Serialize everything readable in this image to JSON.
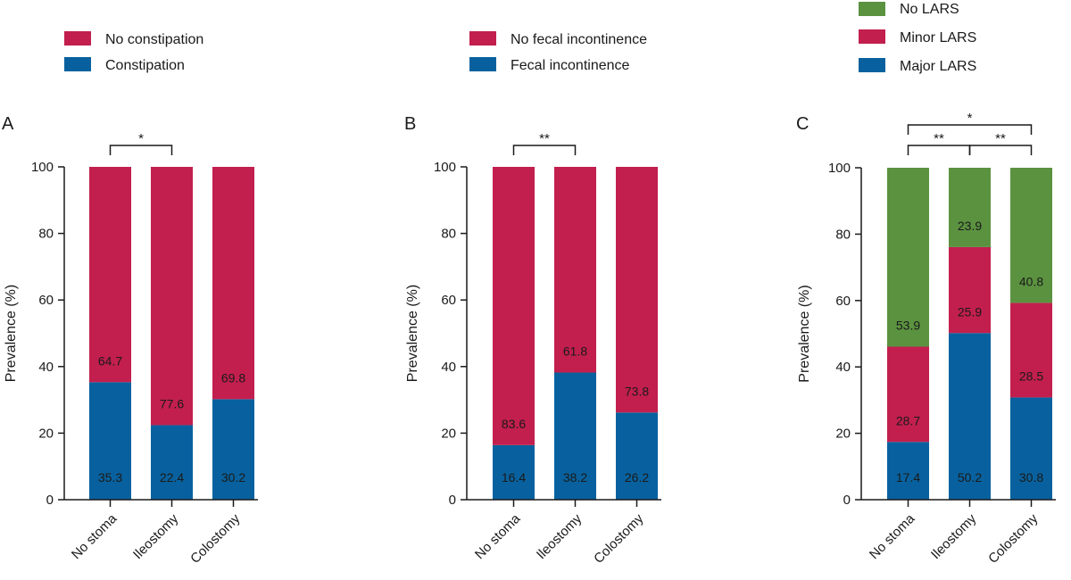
{
  "colors": {
    "no_lars": "#5b9240",
    "magenta": "#c21f4e",
    "blue": "#08619e",
    "axis": "#1a1a1a"
  },
  "chart_data": [
    {
      "type": "bar",
      "stacked": true,
      "panel": "A",
      "ylabel": "Prevalence (%)",
      "ylim": [
        0,
        100
      ],
      "yticks": [
        "0",
        "20",
        "40",
        "60",
        "80",
        "100"
      ],
      "categories": [
        "No stoma",
        "Ileostomy",
        "Colostomy"
      ],
      "legend": [
        "No constipation",
        "Constipation"
      ],
      "series": [
        {
          "name": "Constipation",
          "color": "blue",
          "values": [
            35.3,
            22.4,
            30.2
          ],
          "labels": [
            "35.3",
            "22.4",
            "30.2"
          ]
        },
        {
          "name": "No constipation",
          "color": "magenta",
          "values": [
            64.7,
            77.6,
            69.8
          ],
          "labels": [
            "64.7",
            "77.6",
            "69.8"
          ]
        }
      ],
      "significance": [
        {
          "from": 0,
          "to": 1,
          "label": "*",
          "level": 0
        }
      ]
    },
    {
      "type": "bar",
      "stacked": true,
      "panel": "B",
      "ylabel": "Prevalence (%)",
      "ylim": [
        0,
        100
      ],
      "yticks": [
        "0",
        "20",
        "40",
        "60",
        "80",
        "100"
      ],
      "categories": [
        "No stoma",
        "Ileostomy",
        "Colostomy"
      ],
      "legend": [
        "No fecal incontinence",
        "Fecal incontinence"
      ],
      "series": [
        {
          "name": "Fecal incontinence",
          "color": "blue",
          "values": [
            16.4,
            38.2,
            26.2
          ],
          "labels": [
            "16.4",
            "38.2",
            "26.2"
          ]
        },
        {
          "name": "No fecal incontinence",
          "color": "magenta",
          "values": [
            83.6,
            61.8,
            73.8
          ],
          "labels": [
            "83.6",
            "61.8",
            "73.8"
          ]
        }
      ],
      "significance": [
        {
          "from": 0,
          "to": 1,
          "label": "**",
          "level": 0
        }
      ]
    },
    {
      "type": "bar",
      "stacked": true,
      "panel": "C",
      "ylabel": "Prevalence (%)",
      "ylim": [
        0,
        100
      ],
      "yticks": [
        "0",
        "20",
        "40",
        "60",
        "80",
        "100"
      ],
      "categories": [
        "No stoma",
        "Ileostomy",
        "Colostomy"
      ],
      "legend": [
        "No LARS",
        "Minor LARS",
        "Major LARS"
      ],
      "series": [
        {
          "name": "Major LARS",
          "color": "blue",
          "values": [
            17.4,
            50.2,
            30.8
          ],
          "labels": [
            "17.4",
            "50.2",
            "30.8"
          ]
        },
        {
          "name": "Minor LARS",
          "color": "magenta",
          "values": [
            28.7,
            25.9,
            28.5
          ],
          "labels": [
            "28.7",
            "25.9",
            "28.5"
          ]
        },
        {
          "name": "No LARS",
          "color": "no_lars",
          "values": [
            53.9,
            23.9,
            40.8
          ],
          "labels": [
            "53.9",
            "23.9",
            "40.8"
          ]
        }
      ],
      "significance": [
        {
          "from": 0,
          "to": 1,
          "label": "**",
          "level": 0
        },
        {
          "from": 1,
          "to": 2,
          "label": "**",
          "level": 0
        },
        {
          "from": 0,
          "to": 2,
          "label": "*",
          "level": 1
        }
      ]
    }
  ]
}
